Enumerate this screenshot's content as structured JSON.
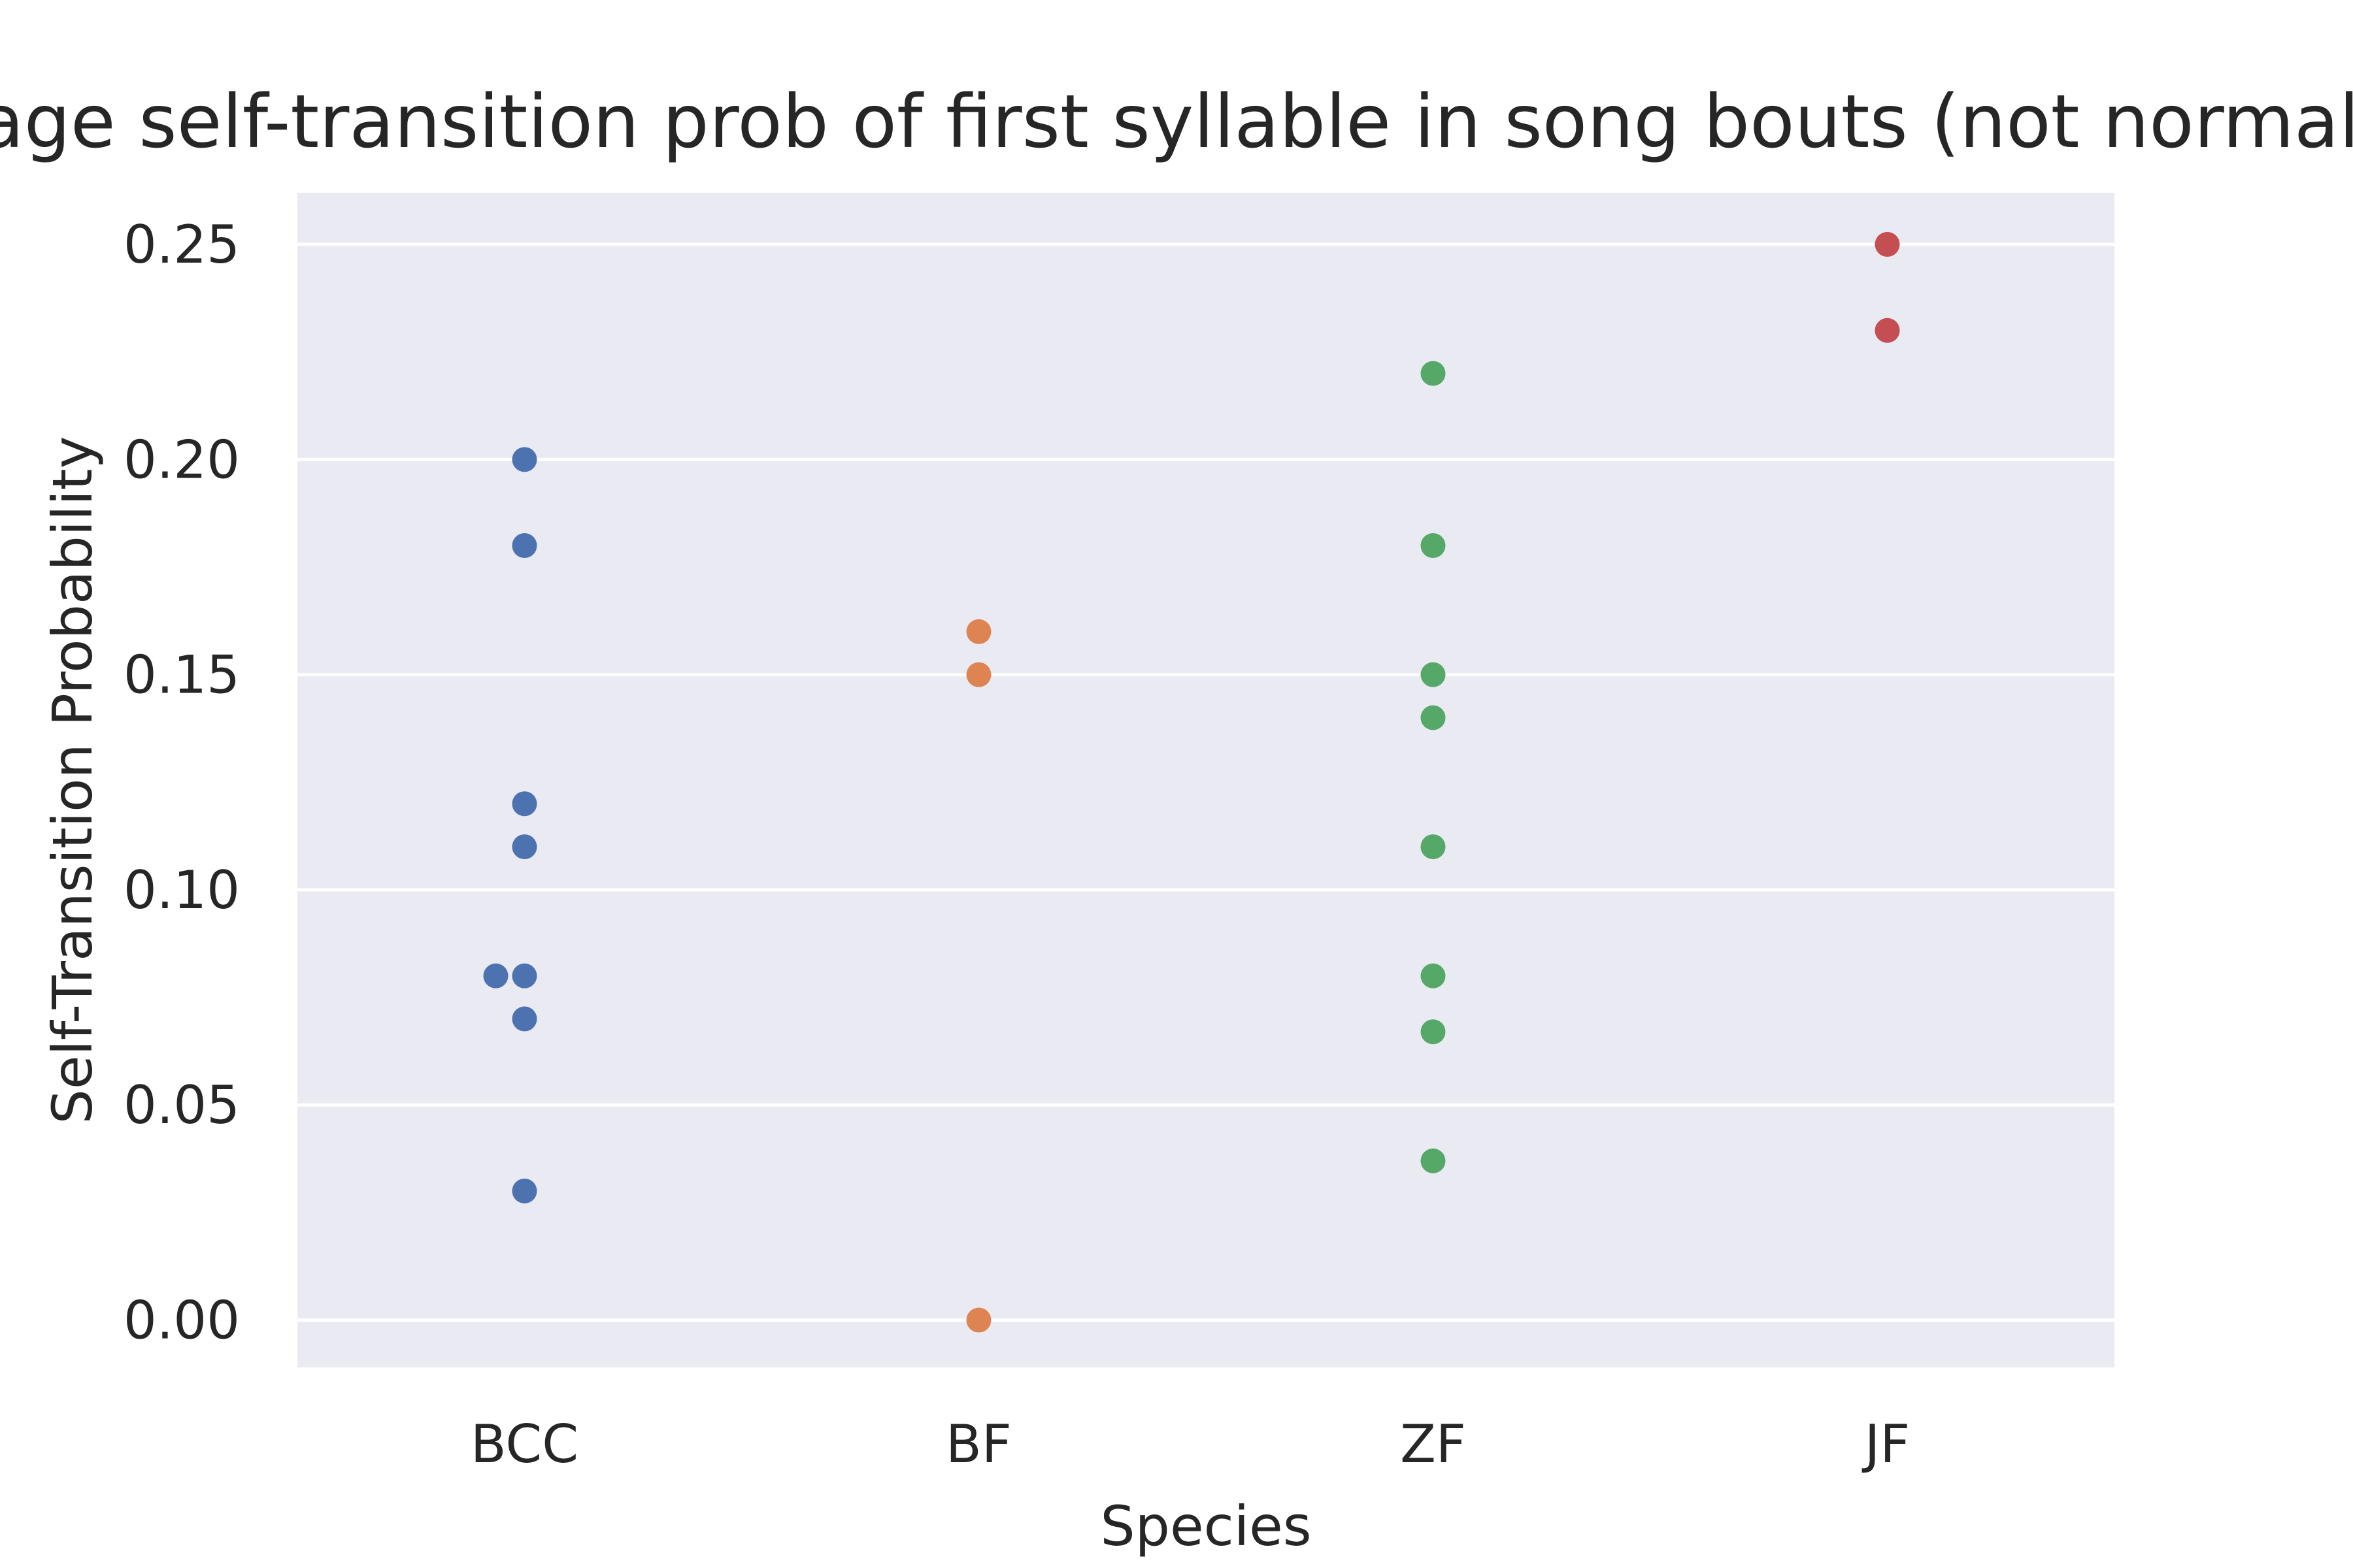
{
  "chart_data": {
    "type": "scatter",
    "title": "Average self-transition prob of first syllable in song bouts (not normalized)",
    "xlabel": "Species",
    "ylabel": "Self-Transition Probability",
    "categories": [
      "BCC",
      "BF",
      "ZF",
      "JF"
    ],
    "ylim": [
      -0.011,
      0.262
    ],
    "yticks": [
      "0.00",
      "0.05",
      "0.10",
      "0.15",
      "0.20",
      "0.25"
    ],
    "grid": true,
    "series": [
      {
        "category": "BCC",
        "color": "#4c72b0",
        "values": [
          0.2,
          0.18,
          0.12,
          0.11,
          0.08,
          0.08,
          0.07,
          0.03
        ]
      },
      {
        "category": "BF",
        "color": "#dd8452",
        "values": [
          0.16,
          0.15,
          0.0
        ]
      },
      {
        "category": "ZF",
        "color": "#55a868",
        "values": [
          0.22,
          0.18,
          0.15,
          0.14,
          0.11,
          0.08,
          0.067,
          0.037
        ]
      },
      {
        "category": "JF",
        "color": "#c44e52",
        "values": [
          0.25,
          0.23
        ]
      }
    ],
    "colors": {
      "panel_background": "#eaeaf2",
      "grid": "#ffffff",
      "text": "#262626"
    }
  }
}
